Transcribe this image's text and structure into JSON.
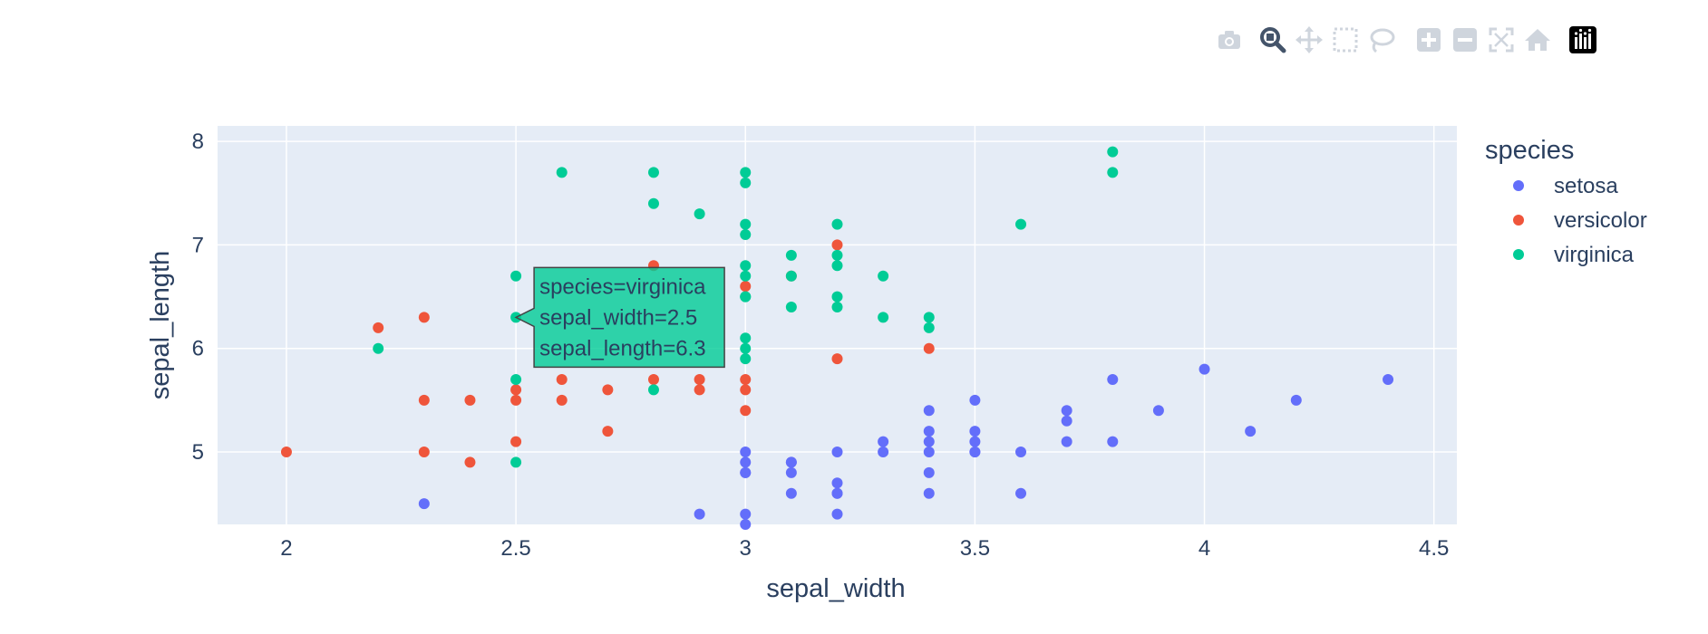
{
  "modebar": {
    "buttons": [
      {
        "icon": "camera-icon",
        "name": "download-png-button"
      },
      {
        "icon": "zoom-icon",
        "name": "zoom-button",
        "active": true
      },
      {
        "icon": "pan-icon",
        "name": "pan-button"
      },
      {
        "icon": "box-select-icon",
        "name": "box-select-button"
      },
      {
        "icon": "lasso-select-icon",
        "name": "lasso-select-button"
      },
      {
        "icon": "zoom-in-icon",
        "name": "zoom-in-button"
      },
      {
        "icon": "zoom-out-icon",
        "name": "zoom-out-button"
      },
      {
        "icon": "autoscale-icon",
        "name": "autoscale-button"
      },
      {
        "icon": "reset-axes-icon",
        "name": "reset-axes-button"
      },
      {
        "icon": "plotly-logo-icon",
        "name": "plotly-logo"
      }
    ]
  },
  "chart_data": {
    "type": "scatter",
    "xlabel": "sepal_width",
    "ylabel": "sepal_length",
    "xlim": [
      1.85,
      4.55
    ],
    "ylim": [
      4.3,
      8.15
    ],
    "x_ticks": [
      2,
      2.5,
      3,
      3.5,
      4,
      4.5
    ],
    "x_tick_labels": [
      "2",
      "2.5",
      "3",
      "3.5",
      "4",
      "4.5"
    ],
    "y_ticks": [
      5,
      6,
      7,
      8
    ],
    "y_tick_labels": [
      "5",
      "6",
      "7",
      "8"
    ],
    "grid": true,
    "legend": {
      "title": "species",
      "placement": "top-right"
    },
    "colors": {
      "plot_bg": "#e5ecf6",
      "grid": "#ffffff",
      "text": "#2a3f5f"
    },
    "series": [
      {
        "name": "setosa",
        "color": "#636efa",
        "x": [
          2.3,
          2.9,
          3.0,
          3.0,
          3.0,
          3.0,
          3.0,
          3.0,
          3.1,
          3.1,
          3.1,
          3.1,
          3.2,
          3.2,
          3.2,
          3.2,
          3.2,
          3.3,
          3.3,
          3.4,
          3.4,
          3.4,
          3.4,
          3.4,
          3.4,
          3.5,
          3.5,
          3.5,
          3.5,
          3.5,
          3.6,
          3.6,
          3.7,
          3.7,
          3.7,
          3.8,
          3.8,
          3.9,
          4.0,
          4.1,
          4.2,
          4.4
        ],
        "y": [
          4.5,
          4.4,
          4.3,
          4.4,
          4.8,
          4.9,
          5.0,
          4.8,
          4.9,
          4.8,
          4.6,
          4.9,
          4.7,
          4.6,
          4.4,
          5.0,
          4.6,
          5.0,
          5.1,
          5.4,
          5.2,
          5.1,
          5.0,
          4.8,
          4.6,
          5.5,
          5.2,
          5.1,
          5.0,
          5.0,
          5.0,
          4.6,
          5.4,
          5.3,
          5.1,
          5.7,
          5.1,
          5.4,
          5.8,
          5.2,
          5.5,
          5.7
        ]
      },
      {
        "name": "versicolor",
        "color": "#ef553b",
        "x": [
          2.0,
          2.2,
          2.3,
          2.3,
          2.3,
          2.4,
          2.4,
          2.5,
          2.5,
          2.5,
          2.6,
          2.6,
          2.7,
          2.7,
          2.8,
          2.8,
          2.9,
          2.9,
          3.0,
          3.0,
          3.0,
          3.0,
          3.1,
          3.2,
          3.2,
          3.4
        ],
        "y": [
          5.0,
          6.2,
          6.3,
          5.5,
          5.0,
          5.5,
          4.9,
          5.6,
          5.5,
          5.1,
          5.7,
          5.5,
          5.6,
          5.2,
          6.8,
          5.7,
          5.7,
          5.6,
          6.6,
          5.7,
          5.6,
          5.4,
          6.7,
          7.0,
          5.9,
          6.0
        ]
      },
      {
        "name": "virginica",
        "color": "#00cc96",
        "x": [
          2.2,
          2.5,
          2.5,
          2.5,
          2.5,
          2.6,
          2.8,
          2.8,
          2.8,
          2.9,
          3.0,
          3.0,
          3.0,
          3.0,
          3.0,
          3.0,
          3.0,
          3.0,
          3.0,
          3.0,
          3.0,
          3.1,
          3.1,
          3.1,
          3.2,
          3.2,
          3.2,
          3.2,
          3.2,
          3.3,
          3.3,
          3.4,
          3.4,
          3.6,
          3.8,
          3.8
        ],
        "y": [
          6.0,
          6.7,
          6.3,
          5.7,
          4.9,
          7.7,
          7.7,
          7.4,
          5.6,
          7.3,
          7.7,
          7.6,
          7.2,
          7.1,
          6.8,
          6.7,
          6.5,
          6.1,
          6.0,
          5.9,
          6.5,
          6.9,
          6.7,
          6.4,
          7.2,
          6.9,
          6.8,
          6.5,
          6.4,
          6.7,
          6.3,
          6.3,
          6.2,
          7.2,
          7.9,
          7.7
        ]
      }
    ],
    "hover": {
      "series": "virginica",
      "x": 2.5,
      "y": 6.3,
      "lines": [
        "species=virginica",
        "sepal_width=2.5",
        "sepal_length=6.3"
      ]
    }
  }
}
